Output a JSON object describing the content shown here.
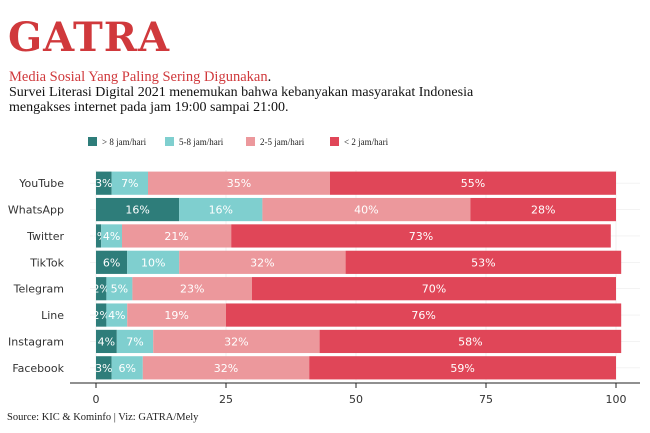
{
  "header": {
    "brand": "GATRA",
    "subtitle": "Media Sosial Yang Paling Sering Digunakan",
    "subtitle_end": ".",
    "description": "Survei Literasi Digital 2021 menemukan bahwa kebanyakan masyarakat Indonesia mengakses internet pada jam 19:00 sampai 21:00."
  },
  "caption": "Source: KIC & Kominfo | Viz: GATRA/Mely",
  "colors": {
    "brand": "#d0393c",
    "series": [
      "#2e7d7a",
      "#7fcfcf",
      "#ec989c",
      "#e04658"
    ]
  },
  "chart_data": {
    "type": "bar",
    "orientation": "horizontal",
    "stacked": true,
    "categories": [
      "YouTube",
      "WhatsApp",
      "Twitter",
      "TikTok",
      "Telegram",
      "Line",
      "Instagram",
      "Facebook"
    ],
    "series": [
      {
        "name": "> 8 jam/hari",
        "values": [
          3,
          16,
          1,
          6,
          2,
          2,
          4,
          3
        ],
        "labels": [
          "3%",
          "16%",
          "1%",
          "6%",
          "2%",
          "2%",
          "4%",
          "3%"
        ]
      },
      {
        "name": "5-8 jam/hari",
        "values": [
          7,
          16,
          4,
          10,
          5,
          4,
          7,
          6
        ],
        "labels": [
          "7%",
          "16%",
          "4%",
          "10%",
          "5%",
          "4%",
          "7%",
          "6%"
        ]
      },
      {
        "name": "2-5 jam/hari",
        "values": [
          35,
          40,
          21,
          32,
          23,
          19,
          32,
          32
        ],
        "labels": [
          "35%",
          "40%",
          "21%",
          "32%",
          "23%",
          "19%",
          "32%",
          "32%"
        ]
      },
      {
        "name": "< 2 jam/hari",
        "values": [
          55,
          28,
          73,
          53,
          70,
          76,
          58,
          59
        ],
        "labels": [
          "55%",
          "28%",
          "73%",
          "53%",
          "70%",
          "76%",
          "58%",
          "59%"
        ]
      }
    ],
    "xlim": [
      0,
      100
    ],
    "xticks": [
      "0",
      "25",
      "50",
      "75",
      "100"
    ],
    "legend_position": "top-left",
    "grid": true
  }
}
